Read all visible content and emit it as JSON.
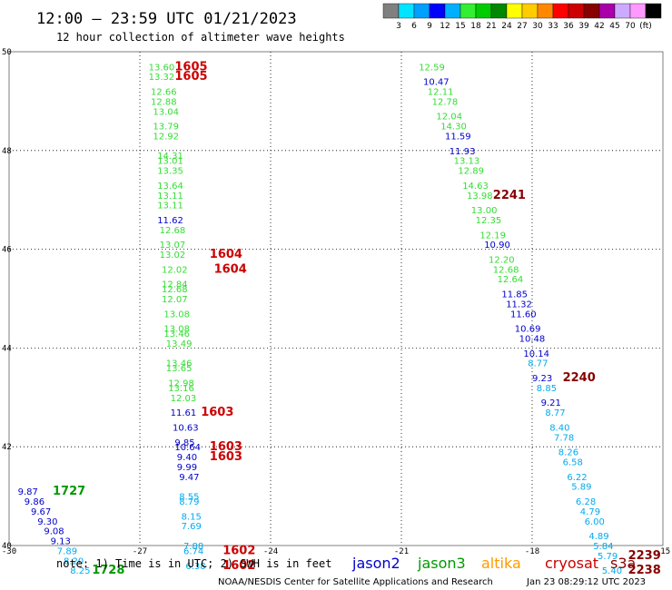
{
  "header": {
    "title": "12:00 – 23:59 UTC 01/21/2023",
    "subtitle": "12 hour collection of altimeter wave heights"
  },
  "colorbar": {
    "colors": [
      "#808080",
      "#00e5ff",
      "#00a0ff",
      "#0000ff",
      "#00b0ff",
      "#33ee33",
      "#00cc00",
      "#008800",
      "#ffff00",
      "#ffcc00",
      "#ff8800",
      "#ff0000",
      "#cc0000",
      "#880000",
      "#aa00aa",
      "#ccaaff",
      "#ff99ff",
      "#000000"
    ],
    "ticks": [
      "3",
      "6",
      "9",
      "12",
      "15",
      "18",
      "21",
      "24",
      "27",
      "30",
      "33",
      "36",
      "39",
      "42",
      "45",
      "70",
      "(ft)"
    ]
  },
  "footer": {
    "note": "note: 1) Time is in UTC; 2) SWH is in feet",
    "credit": "NOAA/NESDIS Center for Satellite Applications and Research",
    "timestamp": "Jan 23 08:29:12 UTC 2023"
  },
  "legend": [
    {
      "name": "jason2",
      "color": "#0000cc"
    },
    {
      "name": "jason3",
      "color": "#009900"
    },
    {
      "name": "altika",
      "color": "#ff9900"
    },
    {
      "name": "cryosat",
      "color": "#cc0000"
    },
    {
      "name": "s3a",
      "color": "#880000"
    }
  ],
  "chart_data": {
    "type": "scatter",
    "xlim": [
      -30,
      -15
    ],
    "ylim": [
      40,
      50
    ],
    "xticks": [
      "-30",
      "-27",
      "-24",
      "-21",
      "-18",
      "-15"
    ],
    "yticks": [
      "50",
      "48",
      "46",
      "44",
      "42",
      "40"
    ],
    "grid": true,
    "points": [
      {
        "x": -26.8,
        "y": 49.7,
        "label": "13.60",
        "color": "#33dd33"
      },
      {
        "x": -26.8,
        "y": 49.5,
        "label": "13.32",
        "color": "#33dd33"
      },
      {
        "x": -26.75,
        "y": 49.2,
        "label": "12.66",
        "color": "#33dd33"
      },
      {
        "x": -26.75,
        "y": 49.0,
        "label": "12.88",
        "color": "#33dd33"
      },
      {
        "x": -26.7,
        "y": 48.8,
        "label": "13.04",
        "color": "#33dd33"
      },
      {
        "x": -26.7,
        "y": 48.5,
        "label": "13.79",
        "color": "#33dd33"
      },
      {
        "x": -26.7,
        "y": 48.3,
        "label": "12.92",
        "color": "#33dd33"
      },
      {
        "x": -26.6,
        "y": 47.9,
        "label": "14.31",
        "color": "#33dd33"
      },
      {
        "x": -26.6,
        "y": 47.8,
        "label": "13.01",
        "color": "#33dd33"
      },
      {
        "x": -26.6,
        "y": 47.6,
        "label": "13.35",
        "color": "#33dd33"
      },
      {
        "x": -26.6,
        "y": 47.3,
        "label": "13.64",
        "color": "#33dd33"
      },
      {
        "x": -26.6,
        "y": 47.1,
        "label": "13.11",
        "color": "#33dd33"
      },
      {
        "x": -26.6,
        "y": 46.9,
        "label": "13.11",
        "color": "#33dd33"
      },
      {
        "x": -26.6,
        "y": 46.6,
        "label": "11.62",
        "color": "#0000cc"
      },
      {
        "x": -26.55,
        "y": 46.4,
        "label": "12.68",
        "color": "#33dd33"
      },
      {
        "x": -26.55,
        "y": 46.1,
        "label": "13.07",
        "color": "#33dd33"
      },
      {
        "x": -26.55,
        "y": 45.9,
        "label": "13.02",
        "color": "#33dd33"
      },
      {
        "x": -26.5,
        "y": 45.6,
        "label": "12.02",
        "color": "#33dd33"
      },
      {
        "x": -26.5,
        "y": 45.3,
        "label": "12.84",
        "color": "#33dd33"
      },
      {
        "x": -26.5,
        "y": 45.2,
        "label": "12.68",
        "color": "#33dd33"
      },
      {
        "x": -26.5,
        "y": 45.0,
        "label": "12.07",
        "color": "#33dd33"
      },
      {
        "x": -26.45,
        "y": 44.7,
        "label": "13.08",
        "color": "#33dd33"
      },
      {
        "x": -26.45,
        "y": 44.4,
        "label": "13.08",
        "color": "#33dd33"
      },
      {
        "x": -26.45,
        "y": 44.3,
        "label": "13.46",
        "color": "#33dd33"
      },
      {
        "x": -26.4,
        "y": 44.1,
        "label": "13.49",
        "color": "#33dd33"
      },
      {
        "x": -26.4,
        "y": 43.7,
        "label": "13.46",
        "color": "#33dd33"
      },
      {
        "x": -26.4,
        "y": 43.6,
        "label": "13.65",
        "color": "#33dd33"
      },
      {
        "x": -26.35,
        "y": 43.3,
        "label": "12.98",
        "color": "#33dd33"
      },
      {
        "x": -26.35,
        "y": 43.2,
        "label": "13.16",
        "color": "#33dd33"
      },
      {
        "x": -26.3,
        "y": 43.0,
        "label": "12.03",
        "color": "#33dd33"
      },
      {
        "x": -26.3,
        "y": 42.7,
        "label": "11.61",
        "color": "#0000cc"
      },
      {
        "x": -26.25,
        "y": 42.4,
        "label": "10.63",
        "color": "#0000cc"
      },
      {
        "x": -26.2,
        "y": 42.1,
        "label": "9.85",
        "color": "#0000cc"
      },
      {
        "x": -26.2,
        "y": 42.0,
        "label": "10.64",
        "color": "#0000cc"
      },
      {
        "x": -26.15,
        "y": 41.8,
        "label": "9.40",
        "color": "#0000cc"
      },
      {
        "x": -26.15,
        "y": 41.6,
        "label": "9.99",
        "color": "#0000cc"
      },
      {
        "x": -26.1,
        "y": 41.4,
        "label": "9.47",
        "color": "#0000cc"
      },
      {
        "x": -26.1,
        "y": 41.0,
        "label": "8.55",
        "color": "#00aaee"
      },
      {
        "x": -26.1,
        "y": 40.9,
        "label": "8.79",
        "color": "#00aaee"
      },
      {
        "x": -26.05,
        "y": 40.6,
        "label": "8.15",
        "color": "#00aaee"
      },
      {
        "x": -26.05,
        "y": 40.4,
        "label": "7.69",
        "color": "#00aaee"
      },
      {
        "x": -26.0,
        "y": 40.0,
        "label": "7.88",
        "color": "#00aaee"
      },
      {
        "x": -26.0,
        "y": 39.9,
        "label": "6.74",
        "color": "#00aaee"
      },
      {
        "x": -25.95,
        "y": 39.6,
        "label": "6.38",
        "color": "#00aaee"
      },
      {
        "x": -29.8,
        "y": 41.1,
        "label": "9.87",
        "color": "#0000cc"
      },
      {
        "x": -29.65,
        "y": 40.9,
        "label": "9.86",
        "color": "#0000cc"
      },
      {
        "x": -29.5,
        "y": 40.7,
        "label": "9.67",
        "color": "#0000cc"
      },
      {
        "x": -29.35,
        "y": 40.5,
        "label": "9.30",
        "color": "#0000cc"
      },
      {
        "x": -29.2,
        "y": 40.3,
        "label": "9.08",
        "color": "#0000cc"
      },
      {
        "x": -29.05,
        "y": 40.1,
        "label": "9.13",
        "color": "#0000cc"
      },
      {
        "x": -28.9,
        "y": 39.9,
        "label": "7.89",
        "color": "#00aaee"
      },
      {
        "x": -28.75,
        "y": 39.7,
        "label": "8.20",
        "color": "#00aaee"
      },
      {
        "x": -28.6,
        "y": 39.5,
        "label": "8.25",
        "color": "#00aaee"
      },
      {
        "x": -20.6,
        "y": 49.7,
        "label": "12.59",
        "color": "#33dd33"
      },
      {
        "x": -20.5,
        "y": 49.4,
        "label": "10.47",
        "color": "#0000cc"
      },
      {
        "x": -20.4,
        "y": 49.2,
        "label": "12.11",
        "color": "#33dd33"
      },
      {
        "x": -20.3,
        "y": 49.0,
        "label": "12.78",
        "color": "#33dd33"
      },
      {
        "x": -20.2,
        "y": 48.7,
        "label": "12.04",
        "color": "#33dd33"
      },
      {
        "x": -20.1,
        "y": 48.5,
        "label": "14.30",
        "color": "#33dd33"
      },
      {
        "x": -20.0,
        "y": 48.3,
        "label": "11.59",
        "color": "#0000cc"
      },
      {
        "x": -19.9,
        "y": 48.0,
        "label": "11.93",
        "color": "#0000cc"
      },
      {
        "x": -19.8,
        "y": 47.8,
        "label": "13.13",
        "color": "#33dd33"
      },
      {
        "x": -19.7,
        "y": 47.6,
        "label": "12.89",
        "color": "#33dd33"
      },
      {
        "x": -19.6,
        "y": 47.3,
        "label": "14.63",
        "color": "#33dd33"
      },
      {
        "x": -19.5,
        "y": 47.1,
        "label": "13.98",
        "color": "#33dd33"
      },
      {
        "x": -19.4,
        "y": 46.8,
        "label": "13.00",
        "color": "#33dd33"
      },
      {
        "x": -19.3,
        "y": 46.6,
        "label": "12.35",
        "color": "#33dd33"
      },
      {
        "x": -19.2,
        "y": 46.3,
        "label": "12.19",
        "color": "#33dd33"
      },
      {
        "x": -19.1,
        "y": 46.1,
        "label": "10.90",
        "color": "#0000cc"
      },
      {
        "x": -19.0,
        "y": 45.8,
        "label": "12.20",
        "color": "#33dd33"
      },
      {
        "x": -18.9,
        "y": 45.6,
        "label": "12.68",
        "color": "#33dd33"
      },
      {
        "x": -18.8,
        "y": 45.4,
        "label": "12.64",
        "color": "#33dd33"
      },
      {
        "x": -18.7,
        "y": 45.1,
        "label": "11.85",
        "color": "#0000cc"
      },
      {
        "x": -18.6,
        "y": 44.9,
        "label": "11.32",
        "color": "#0000cc"
      },
      {
        "x": -18.5,
        "y": 44.7,
        "label": "11.60",
        "color": "#0000cc"
      },
      {
        "x": -18.4,
        "y": 44.4,
        "label": "10.69",
        "color": "#0000cc"
      },
      {
        "x": -18.3,
        "y": 44.2,
        "label": "10.48",
        "color": "#0000cc"
      },
      {
        "x": -18.2,
        "y": 43.9,
        "label": "10.14",
        "color": "#0000cc"
      },
      {
        "x": -18.1,
        "y": 43.7,
        "label": "8.77",
        "color": "#00aaee"
      },
      {
        "x": -18.0,
        "y": 43.4,
        "label": "9.23",
        "color": "#0000cc"
      },
      {
        "x": -17.9,
        "y": 43.2,
        "label": "8.85",
        "color": "#00aaee"
      },
      {
        "x": -17.8,
        "y": 42.9,
        "label": "9.21",
        "color": "#0000cc"
      },
      {
        "x": -17.7,
        "y": 42.7,
        "label": "8.77",
        "color": "#00aaee"
      },
      {
        "x": -17.6,
        "y": 42.4,
        "label": "8.40",
        "color": "#00aaee"
      },
      {
        "x": -17.5,
        "y": 42.2,
        "label": "7.78",
        "color": "#00aaee"
      },
      {
        "x": -17.4,
        "y": 41.9,
        "label": "8.26",
        "color": "#00aaee"
      },
      {
        "x": -17.3,
        "y": 41.7,
        "label": "6.58",
        "color": "#00aaee"
      },
      {
        "x": -17.2,
        "y": 41.4,
        "label": "6.22",
        "color": "#00aaee"
      },
      {
        "x": -17.1,
        "y": 41.2,
        "label": "5.89",
        "color": "#00aaee"
      },
      {
        "x": -17.0,
        "y": 40.9,
        "label": "6.28",
        "color": "#00aaee"
      },
      {
        "x": -16.9,
        "y": 40.7,
        "label": "4.79",
        "color": "#00aaee"
      },
      {
        "x": -16.8,
        "y": 40.5,
        "label": "6.00",
        "color": "#00aaee"
      },
      {
        "x": -16.7,
        "y": 40.2,
        "label": "4.89",
        "color": "#00aaee"
      },
      {
        "x": -16.6,
        "y": 40.0,
        "label": "5.84",
        "color": "#00aaee"
      },
      {
        "x": -16.5,
        "y": 39.8,
        "label": "5.79",
        "color": "#00aaee"
      },
      {
        "x": -16.4,
        "y": 39.5,
        "label": "5.40",
        "color": "#00aaee"
      }
    ],
    "times": [
      {
        "x": -26.2,
        "y": 49.7,
        "label": "1605",
        "color": "#cc0000"
      },
      {
        "x": -26.2,
        "y": 49.5,
        "label": "1605",
        "color": "#cc0000"
      },
      {
        "x": -25.4,
        "y": 45.9,
        "label": "1604",
        "color": "#cc0000"
      },
      {
        "x": -25.3,
        "y": 45.6,
        "label": "1604",
        "color": "#cc0000"
      },
      {
        "x": -25.6,
        "y": 42.7,
        "label": "1603",
        "color": "#cc0000"
      },
      {
        "x": -25.4,
        "y": 42.0,
        "label": "1603",
        "color": "#cc0000"
      },
      {
        "x": -25.4,
        "y": 41.8,
        "label": "1603",
        "color": "#cc0000"
      },
      {
        "x": -25.1,
        "y": 39.9,
        "label": "1602",
        "color": "#cc0000"
      },
      {
        "x": -25.1,
        "y": 39.6,
        "label": "1602",
        "color": "#cc0000"
      },
      {
        "x": -29.0,
        "y": 41.1,
        "label": "1727",
        "color": "#009900"
      },
      {
        "x": -28.1,
        "y": 39.5,
        "label": "1728",
        "color": "#009900"
      },
      {
        "x": -18.9,
        "y": 47.1,
        "label": "2241",
        "color": "#880000"
      },
      {
        "x": -17.3,
        "y": 43.4,
        "label": "2240",
        "color": "#880000"
      },
      {
        "x": -15.8,
        "y": 39.8,
        "label": "2239",
        "color": "#880000"
      },
      {
        "x": -15.8,
        "y": 39.5,
        "label": "2238",
        "color": "#880000"
      }
    ]
  }
}
